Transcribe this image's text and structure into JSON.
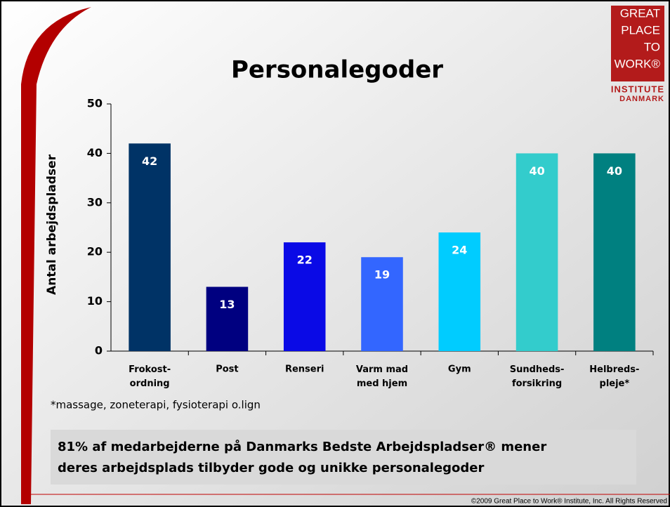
{
  "logo": {
    "lines": [
      "GREAT",
      "PLACE",
      "TO",
      "WORK®"
    ],
    "institute": "INSTITUTE",
    "country": "DANMARK"
  },
  "chart_data": {
    "type": "bar",
    "title": "Personalegoder",
    "y_label": "Antal arbejdspladser",
    "categories": [
      "Frokost-\nordning",
      "Post",
      "Renseri",
      "Varm mad\nmed hjem",
      "Gym",
      "Sundheds-\nforsikring",
      "Helbreds-\npleje*"
    ],
    "values": [
      42,
      13,
      22,
      19,
      24,
      40,
      40
    ],
    "colors": [
      "#003366",
      "#000080",
      "#0a0ae6",
      "#3366ff",
      "#00ccff",
      "#33cccc",
      "#008080"
    ],
    "ylim": [
      0,
      50
    ],
    "yticks": [
      0,
      10,
      20,
      30,
      40,
      50
    ],
    "grid": false
  },
  "footnote": "*massage, zoneterapi, fysioterapi o.lign",
  "callout": [
    "81% af medarbejderne på Danmarks Bedste Arbejdspladser® mener",
    "deres arbejdsplads tilbyder gode og unikke personalegoder"
  ],
  "copyright": "©2009 Great Place to Work® Institute, Inc.  All Rights Reserved"
}
